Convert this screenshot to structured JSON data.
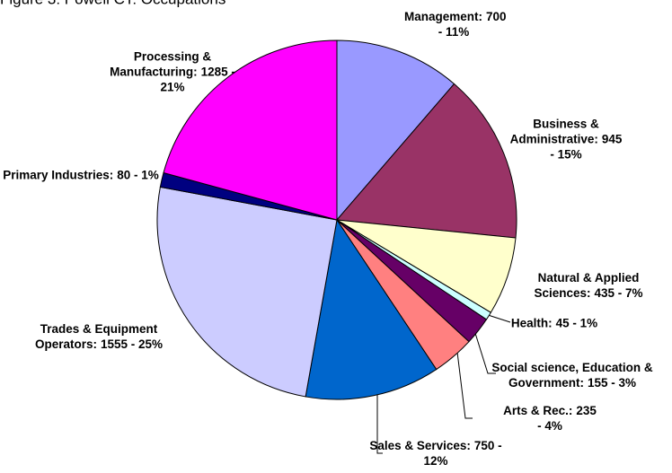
{
  "chart_data": {
    "type": "pie",
    "title": "Figure 3: Powell CT: Occupations",
    "categories": [
      "Management:",
      "Business & Administrative:",
      "Natural & Applied Sciences:",
      "Health:",
      "Social science, Education & Government:",
      "Arts & Rec.:",
      "Sales & Services:",
      "Trades & Equipment Operators:",
      "Primary Industries:",
      "Processing & Manufacturing:"
    ],
    "values": [
      700,
      945,
      435,
      45,
      155,
      235,
      750,
      1555,
      80,
      1285
    ],
    "value_labels": [
      "700 - 11%",
      "945 - 15%",
      "435 - 7%",
      "45 - 1%",
      "155 - 3%",
      "235 - 4%",
      "750 - 12%",
      "1555 - 25%",
      "80 - 1%",
      "1285 - 21%"
    ],
    "colors": [
      "#9999ff",
      "#993366",
      "#ffffcc",
      "#ccffff",
      "#660066",
      "#ff8080",
      "#0066cc",
      "#ccccff",
      "#000080",
      "#ff00ff"
    ]
  }
}
